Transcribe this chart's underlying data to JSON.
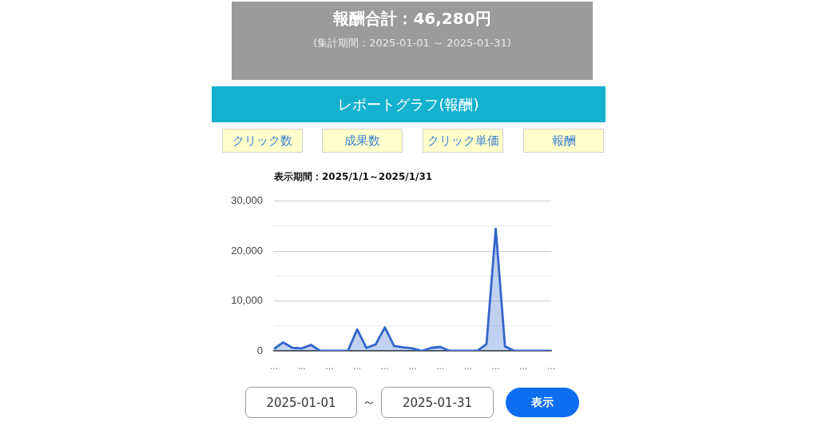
{
  "chart_data": {
    "type": "area",
    "title": "報酬合計：46,280円",
    "subtitle": "(集計期間：2025-01-01 ～ 2025-01-31)",
    "annotations": [
      "レポートグラフ(報酬)",
      "クリック数",
      "成果数",
      "クリック単価",
      "報酬",
      "表示期間：2025/1/1～2025/1/31",
      "2025-01-01",
      "～",
      "2025-01-31",
      "表示"
    ],
    "categories": [
      "...",
      null,
      null,
      "...",
      null,
      null,
      "...",
      null,
      null,
      "...",
      null,
      null,
      "...",
      null,
      null,
      "...",
      null,
      null,
      "...",
      null,
      null,
      "...",
      null,
      null,
      "...",
      null,
      null,
      "...",
      null,
      null,
      "..."
    ],
    "values": [
      400,
      1700,
      600,
      500,
      1200,
      0,
      0,
      0,
      0,
      4300,
      600,
      1300,
      4700,
      1000,
      700,
      500,
      0,
      600,
      800,
      0,
      0,
      0,
      0,
      1400,
      24500,
      900,
      0,
      0,
      0,
      0,
      0
    ],
    "color": "#3366cc",
    "ylim": [
      0,
      30000
    ],
    "yticks": [
      {
        "value": 0,
        "label": "0"
      },
      {
        "value": 5000,
        "label": null
      },
      {
        "value": 10000,
        "label": "10,000"
      },
      {
        "value": 15000,
        "label": null
      },
      {
        "value": 20000,
        "label": "20,000"
      },
      {
        "value": 25000,
        "label": null
      },
      {
        "value": 30000,
        "label": "30,000"
      }
    ],
    "grid": "y"
  }
}
